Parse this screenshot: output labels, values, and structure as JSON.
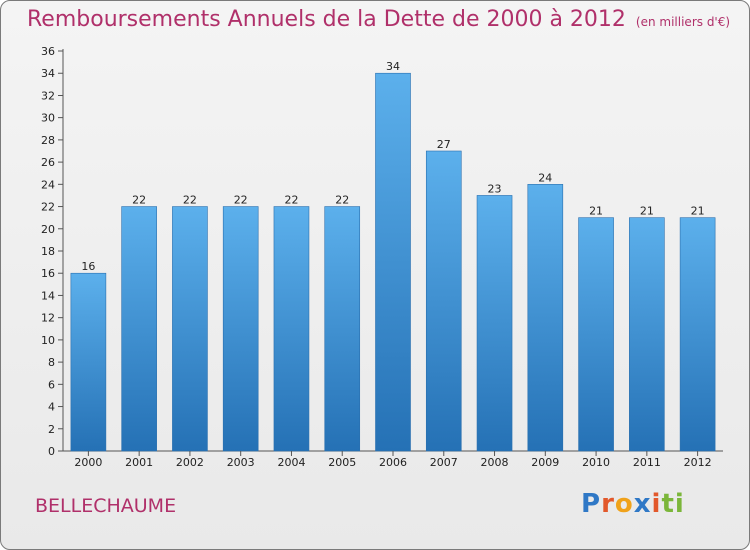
{
  "title": "Remboursements Annuels de la Dette de 2000 à 2012",
  "unit": "(en milliers d'€)",
  "commune": "BELLECHAUME",
  "logo": [
    "P",
    "r",
    "o",
    "x",
    "i",
    "ti"
  ],
  "chart_data": {
    "type": "bar",
    "title": "Remboursements Annuels de la Dette de 2000 à 2012",
    "subtitle": "(en milliers d'€)",
    "categories": [
      "2000",
      "2001",
      "2002",
      "2003",
      "2004",
      "2005",
      "2006",
      "2007",
      "2008",
      "2009",
      "2010",
      "2011",
      "2012"
    ],
    "values": [
      16,
      22,
      22,
      22,
      22,
      22,
      34,
      27,
      23,
      24,
      21,
      21,
      21
    ],
    "ylim": [
      0,
      36
    ],
    "yticks": [
      0,
      2,
      4,
      6,
      8,
      10,
      12,
      14,
      16,
      18,
      20,
      22,
      24,
      26,
      28,
      30,
      32,
      34,
      36
    ],
    "grid": false,
    "bar_color": "#4a9fe0"
  }
}
